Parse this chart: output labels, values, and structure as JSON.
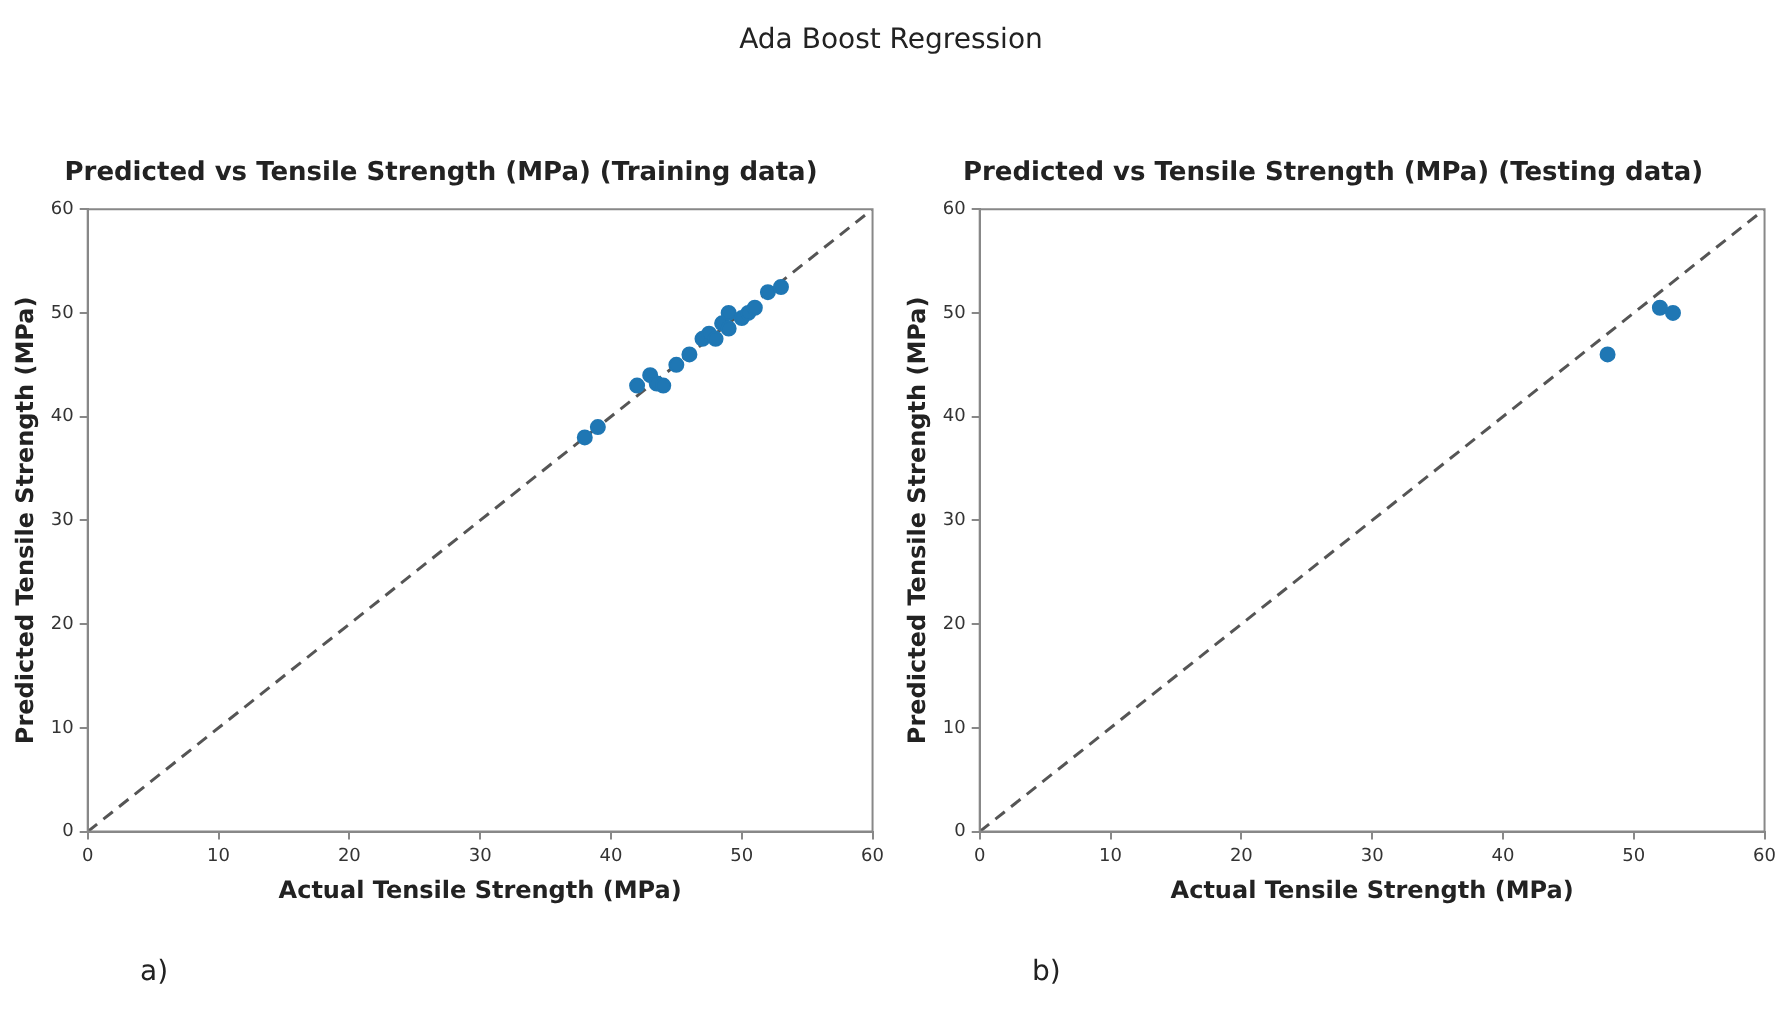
{
  "chart_data": [
    {
      "type": "scatter",
      "title": "Predicted vs Tensile Strength (MPa) (Training data)",
      "xlabel": "Actual Tensile Strength (MPa)",
      "ylabel": "Predicted Tensile Strength (MPa)",
      "annotations": [
        "Ada Boost Regression",
        "a)"
      ],
      "xlim": [
        0,
        60
      ],
      "ylim": [
        0,
        60
      ],
      "xticks": [
        0,
        10,
        20,
        30,
        40,
        50,
        60
      ],
      "yticks": [
        0,
        10,
        20,
        30,
        40,
        50,
        60
      ],
      "grid": false,
      "legend": false,
      "marker": "circle",
      "series": [
        {
          "color": "#1f77b4",
          "x": [
            38,
            39,
            42,
            43,
            43.5,
            44,
            45,
            46,
            47,
            47.5,
            48,
            48.5,
            49,
            49,
            50,
            50.5,
            51,
            52,
            53
          ],
          "values": [
            38,
            39,
            43,
            44,
            43.2,
            43,
            45,
            46,
            47.5,
            48,
            47.5,
            49,
            50,
            48.5,
            49.5,
            50,
            50.5,
            52,
            52.5
          ]
        },
        {
          "type": "line",
          "color": "#555555",
          "line_style": "dashed",
          "marker": "none",
          "x": [
            0,
            60
          ],
          "values": [
            0,
            60
          ]
        }
      ]
    },
    {
      "type": "scatter",
      "title": "Predicted vs Tensile Strength (MPa) (Testing data)",
      "xlabel": "Actual Tensile Strength (MPa)",
      "ylabel": "Predicted Tensile Strength (MPa)",
      "annotations": [
        "b)"
      ],
      "xlim": [
        0,
        60
      ],
      "ylim": [
        0,
        60
      ],
      "xticks": [
        0,
        10,
        20,
        30,
        40,
        50,
        60
      ],
      "yticks": [
        0,
        10,
        20,
        30,
        40,
        50,
        60
      ],
      "grid": false,
      "legend": false,
      "marker": "circle",
      "series": [
        {
          "color": "#1f77b4",
          "x": [
            48,
            52,
            53
          ],
          "values": [
            46,
            50.5,
            50
          ]
        },
        {
          "type": "line",
          "color": "#555555",
          "line_style": "dashed",
          "marker": "none",
          "x": [
            0,
            60
          ],
          "values": [
            0,
            60
          ]
        }
      ]
    }
  ]
}
